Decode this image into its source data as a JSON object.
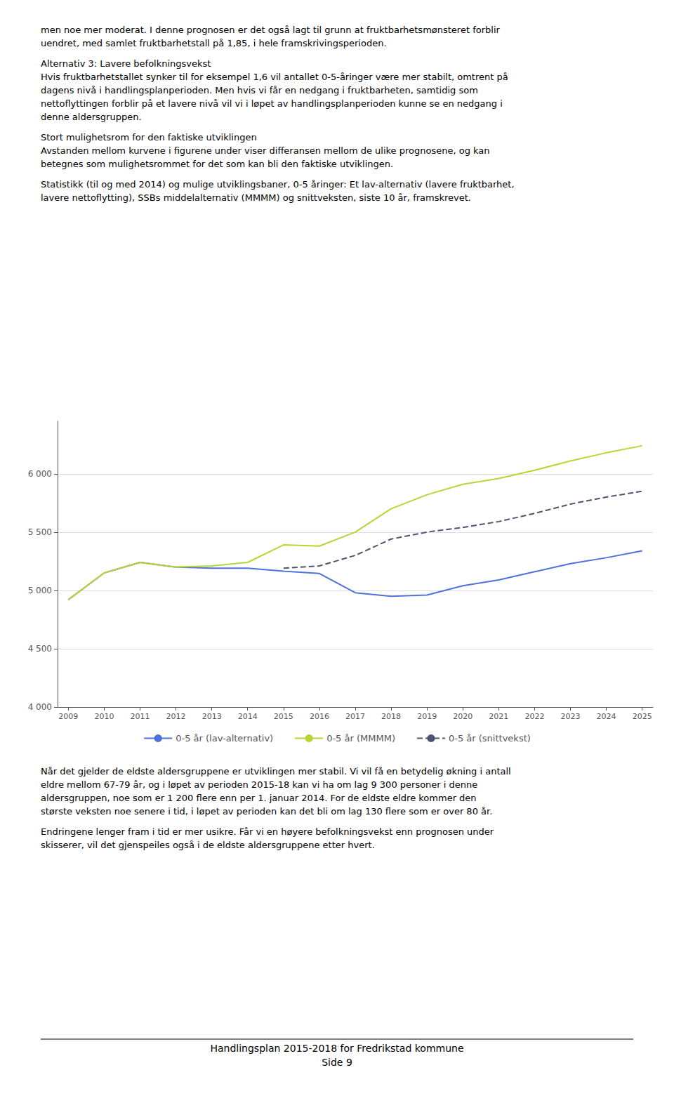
{
  "chart_data": {
    "type": "line",
    "x": [
      2009,
      2010,
      2011,
      2012,
      2013,
      2014,
      2015,
      2016,
      2017,
      2018,
      2019,
      2020,
      2021,
      2022,
      2023,
      2024,
      2025
    ],
    "series": [
      {
        "name": "0-5 år (lav-alternativ)",
        "values": [
          4920,
          5150,
          5240,
          5200,
          5190,
          5190,
          5165,
          5145,
          4980,
          4950,
          4960,
          5040,
          5090,
          5160,
          5230,
          5280,
          5340
        ]
      },
      {
        "name": "0-5 år (MMMM)",
        "values": [
          4920,
          5150,
          5240,
          5200,
          5210,
          5240,
          5390,
          5380,
          5500,
          5700,
          5820,
          5910,
          5960,
          6030,
          6110,
          6180,
          6240
        ]
      },
      {
        "name": "0-5 år (snittvekst)",
        "values": [
          null,
          null,
          null,
          null,
          null,
          null,
          5190,
          5210,
          5300,
          5440,
          5500,
          5540,
          5590,
          5660,
          5740,
          5800,
          5850
        ],
        "line_style": "dashed"
      }
    ],
    "xlim": [
      2008.7,
      2025.3
    ],
    "xticks": [
      2009,
      2010,
      2011,
      2012,
      2013,
      2014,
      2015,
      2016,
      2017,
      2018,
      2019,
      2020,
      2021,
      2022,
      2023,
      2024,
      2025
    ],
    "ylim": [
      4000,
      6450
    ],
    "yticks": [
      {
        "value": 4000,
        "label": "4 000"
      },
      {
        "value": 4500,
        "label": "4 500"
      },
      {
        "value": 5000,
        "label": "5 000"
      },
      {
        "value": 5500,
        "label": "5 500"
      },
      {
        "value": 6000,
        "label": "6 000"
      }
    ],
    "grid": true,
    "legend": "bottom"
  },
  "text_above": [
    [
      "men noe mer moderat. I denne prognosen er det også lagt til grunn at fruktbarhetsmønsteret forblir",
      "uendret, med samlet fruktbarhetstall på 1,85, i hele framskrivingsperioden."
    ],
    [
      "Alternativ 3: Lavere befolkningsvekst",
      "Hvis fruktbarhetstallet synker til for eksempel 1,6 vil antallet 0-5-åringer være mer stabilt, omtrent på",
      "dagens nivå i handlingsplanperioden. Men hvis vi får en nedgang i fruktbarheten, samtidig som",
      "nettoflyttingen forblir på et lavere nivå vil vi i løpet av handlingsplanperioden kunne se en nedgang i",
      "denne aldersgruppen."
    ],
    [
      "Stort mulighetsrom for den faktiske utviklingen",
      "Avstanden mellom kurvene i figurene under viser differansen mellom de ulike prognosene, og kan",
      "betegnes som mulighetsrommet for det som kan bli den faktiske utviklingen."
    ],
    [
      "Statistikk (til og med 2014) og mulige utviklingsbaner, 0-5 åringer: Et lav-alternativ (lavere fruktbarhet,",
      "lavere nettoflytting), SSBs middelalternativ (MMMM) og snittveksten, siste 10 år, framskrevet."
    ]
  ],
  "text_below": [
    [
      "Når det gjelder de eldste aldersgruppene er utviklingen mer stabil. Vi vil få en betydelig økning i antall",
      "eldre mellom 67-79 år, og i løpet av perioden 2015-18 kan vi ha om lag 9 300 personer i denne",
      "aldersgruppen, noe som er 1 200 flere enn per 1. januar 2014. For de eldste eldre kommer den",
      "største veksten noe senere i tid, i løpet av perioden kan det bli om lag 130 flere som er over 80 år."
    ],
    [
      "Endringene lenger fram i tid er mer usikre. Får vi en høyere befolkningsvekst enn prognosen under",
      "skisserer, vil det gjenspeiles også i de eldste aldersgruppene etter hvert."
    ]
  ],
  "footer": [
    "Handlingsplan 2015-2018 for Fredrikstad kommune",
    "Side 9"
  ]
}
